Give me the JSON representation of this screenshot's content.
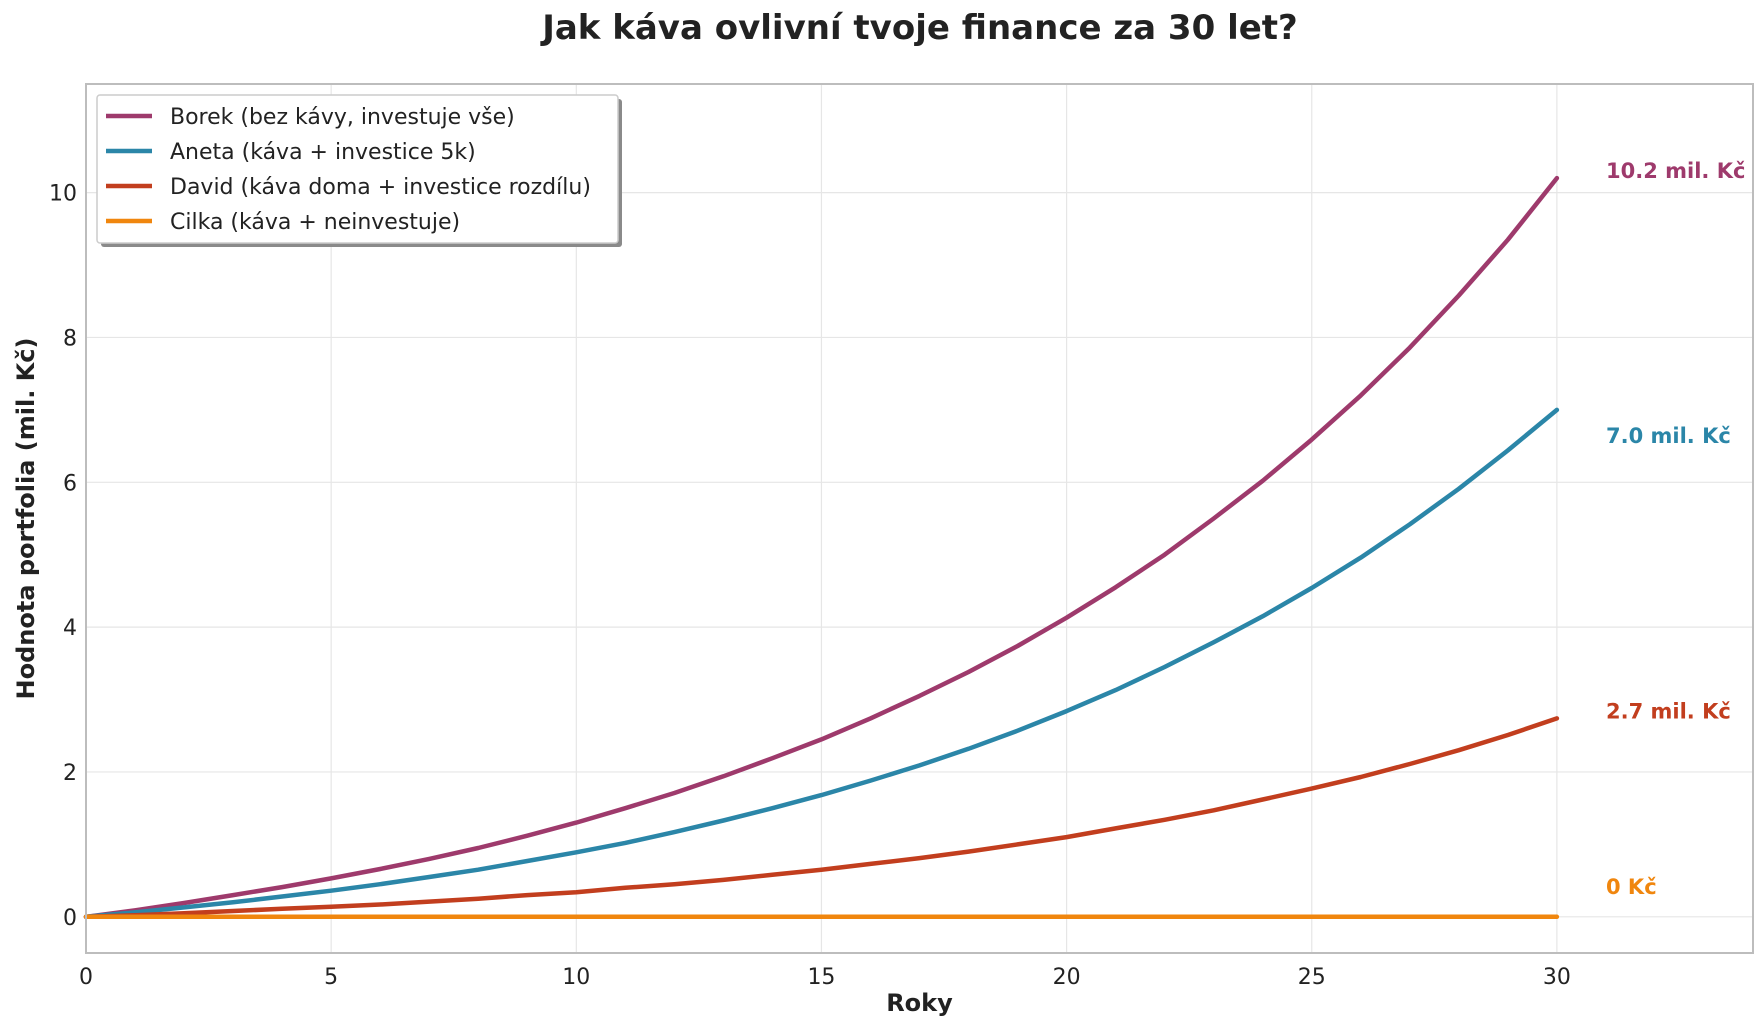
{
  "chart_data": {
    "type": "line",
    "title": "Jak káva ovlivní tvoje finance za 30 let?",
    "xlabel": "Roky",
    "ylabel": "Hodnota portfolia (mil. Kč)",
    "xlim": [
      0,
      34
    ],
    "ylim": [
      -0.5,
      11.5
    ],
    "xticks": [
      "0",
      "5",
      "10",
      "15",
      "20",
      "25",
      "30"
    ],
    "yticks": [
      "0",
      "2",
      "4",
      "6",
      "8",
      "10"
    ],
    "grid": true,
    "legend_position": "top-left",
    "x": [
      0,
      1,
      2,
      3,
      4,
      5,
      6,
      7,
      8,
      9,
      10,
      11,
      12,
      13,
      14,
      15,
      16,
      17,
      18,
      19,
      20,
      21,
      22,
      23,
      24,
      25,
      26,
      27,
      28,
      29,
      30
    ],
    "series": [
      {
        "name": "Borek (bez kávy, investuje vše)",
        "color": "#9e3a6c",
        "values": [
          0,
          0.09,
          0.19,
          0.3,
          0.41,
          0.53,
          0.66,
          0.8,
          0.95,
          1.12,
          1.3,
          1.5,
          1.71,
          1.94,
          2.19,
          2.45,
          2.74,
          3.05,
          3.38,
          3.74,
          4.13,
          4.55,
          5.0,
          5.5,
          6.02,
          6.59,
          7.2,
          7.86,
          8.58,
          9.35,
          10.2
        ],
        "end_label": "10.2 mil. Kč"
      },
      {
        "name": "Aneta (káva + investice 5k)",
        "color": "#2b86a8",
        "values": [
          0,
          0.06,
          0.13,
          0.2,
          0.28,
          0.36,
          0.45,
          0.55,
          0.65,
          0.77,
          0.89,
          1.02,
          1.17,
          1.33,
          1.5,
          1.68,
          1.88,
          2.09,
          2.32,
          2.57,
          2.84,
          3.13,
          3.45,
          3.79,
          4.15,
          4.54,
          4.96,
          5.42,
          5.91,
          6.44,
          7.0
        ],
        "end_label": "7.0 mil. Kč"
      },
      {
        "name": "David (káva doma + investice rozdílu)",
        "color": "#c23e1e",
        "values": [
          0,
          0.02,
          0.05,
          0.08,
          0.11,
          0.14,
          0.17,
          0.21,
          0.25,
          0.3,
          0.34,
          0.4,
          0.45,
          0.51,
          0.58,
          0.65,
          0.73,
          0.81,
          0.9,
          1.0,
          1.1,
          1.22,
          1.34,
          1.47,
          1.62,
          1.77,
          1.93,
          2.11,
          2.3,
          2.51,
          2.74
        ],
        "end_label": "2.7 mil. Kč"
      },
      {
        "name": "Cilka (káva + neinvestuje)",
        "color": "#f0860e",
        "values": [
          0,
          0,
          0,
          0,
          0,
          0,
          0,
          0,
          0,
          0,
          0,
          0,
          0,
          0,
          0,
          0,
          0,
          0,
          0,
          0,
          0,
          0,
          0,
          0,
          0,
          0,
          0,
          0,
          0,
          0,
          0
        ],
        "end_label": "0 Kč"
      }
    ]
  }
}
